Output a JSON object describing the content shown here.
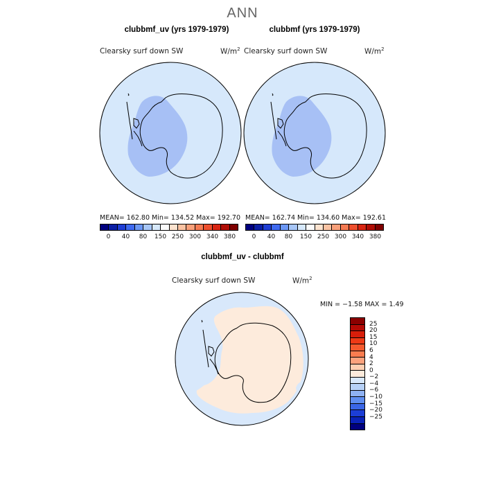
{
  "figure": {
    "title": "ANN"
  },
  "panels": [
    {
      "title": "clubbmf_uv (yrs 1979-1979)",
      "variable": "Clearsky surf down SW",
      "units_base": "W/m",
      "units_exp": "2",
      "stats": "MEAN= 162.80   Min= 134.52   Max= 192.70"
    },
    {
      "title": "clubbmf (yrs 1979-1979)",
      "variable": "Clearsky surf down SW",
      "units_base": "W/m",
      "units_exp": "2",
      "stats": "MEAN= 162.74   Min= 134.60   Max= 192.61"
    },
    {
      "title": "clubbmf_uv - clubbmf",
      "variable": "Clearsky surf down SW",
      "units_base": "W/m",
      "units_exp": "2",
      "stats": "MIN =   −1.58  MAX =    1.49"
    }
  ],
  "colorbar_abs": {
    "ticks": [
      "0",
      "40",
      "80",
      "150",
      "250",
      "300",
      "340",
      "380"
    ],
    "colors": [
      "#00007f",
      "#0b1ea5",
      "#1f3ed4",
      "#3f6af0",
      "#6b97f5",
      "#a7c6f7",
      "#d6e8fb",
      "#fbfbfb",
      "#fde3cf",
      "#fbc3a3",
      "#f9a07a",
      "#f57a52",
      "#ee4f2d",
      "#d92512",
      "#b00d05",
      "#7f0000"
    ]
  },
  "colorbar_diff": {
    "ticks": [
      "25",
      "20",
      "15",
      "10",
      "6",
      "4",
      "2",
      "0",
      "−2",
      "−4",
      "−6",
      "−10",
      "−15",
      "−20",
      "−25"
    ],
    "colors": [
      "#8b0000",
      "#b40a05",
      "#d81e0a",
      "#ee3a16",
      "#f55a2e",
      "#f97c4f",
      "#fba27d",
      "#fdcfb2",
      "#fdebdc",
      "#d8e8fb",
      "#b7d1f7",
      "#8fb2f3",
      "#5f8ef0",
      "#3a66e6",
      "#1c3ed6",
      "#0a22b8",
      "#00007f"
    ]
  },
  "map_colors": {
    "ocean_abs": "#d6e8fb",
    "inner_abs": "#a7c0f5",
    "diff_positive": "#fdebdc",
    "diff_negative": "#d8e8fb",
    "coast": "#000000"
  }
}
